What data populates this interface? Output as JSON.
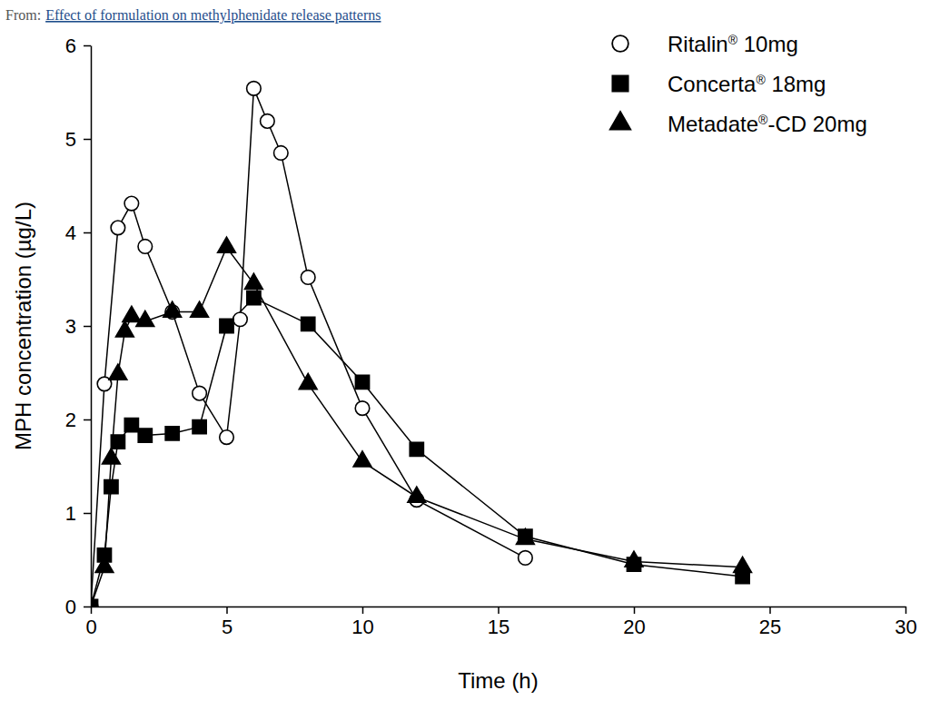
{
  "chart_data": {
    "type": "line",
    "source_prefix": "From:",
    "source": "Effect of formulation on methylphenidate release patterns",
    "x_label": "Time (h)",
    "y_label": "MPH concentration (µg/L)",
    "xlim": [
      0,
      30
    ],
    "xticks": [
      0,
      5,
      10,
      15,
      20,
      25,
      30
    ],
    "ylim": [
      0,
      6
    ],
    "yticks": [
      0,
      1,
      2,
      3,
      4,
      5,
      6
    ],
    "grid": false,
    "legend": "upper right",
    "series": [
      {
        "name": "Ritalin® 10mg",
        "color": "#000000",
        "marker": "open_circle",
        "line_style": "solid",
        "x": [
          0,
          0.5,
          1,
          1.5,
          2,
          3,
          4,
          5,
          5.5,
          6,
          6.5,
          7,
          8,
          10,
          12,
          16
        ],
        "values": [
          0,
          2.38,
          4.05,
          4.31,
          3.85,
          3.15,
          2.28,
          1.81,
          3.07,
          5.54,
          5.19,
          4.85,
          3.52,
          2.12,
          1.14,
          0.52
        ]
      },
      {
        "name": "Concerta® 18mg",
        "color": "#000000",
        "marker": "square",
        "line_style": "solid",
        "x": [
          0,
          0.5,
          0.75,
          1,
          1.5,
          2,
          3,
          4,
          5,
          6,
          8,
          10,
          12,
          16,
          20,
          24
        ],
        "values": [
          0,
          0.55,
          1.28,
          1.76,
          1.94,
          1.83,
          1.85,
          1.92,
          3.0,
          3.3,
          3.02,
          2.4,
          1.68,
          0.75,
          0.45,
          0.32
        ]
      },
      {
        "name": "Metadate®-CD 20mg",
        "color": "#000000",
        "marker": "triangle",
        "line_style": "solid",
        "x": [
          0,
          0.5,
          0.75,
          1,
          1.25,
          1.5,
          2,
          3,
          4,
          5,
          6,
          8,
          10,
          12,
          16,
          20,
          24
        ],
        "values": [
          0,
          0.42,
          1.58,
          2.48,
          2.94,
          3.1,
          3.05,
          3.15,
          3.15,
          3.84,
          3.45,
          2.38,
          1.55,
          1.17,
          0.72,
          0.48,
          0.42
        ]
      }
    ]
  }
}
